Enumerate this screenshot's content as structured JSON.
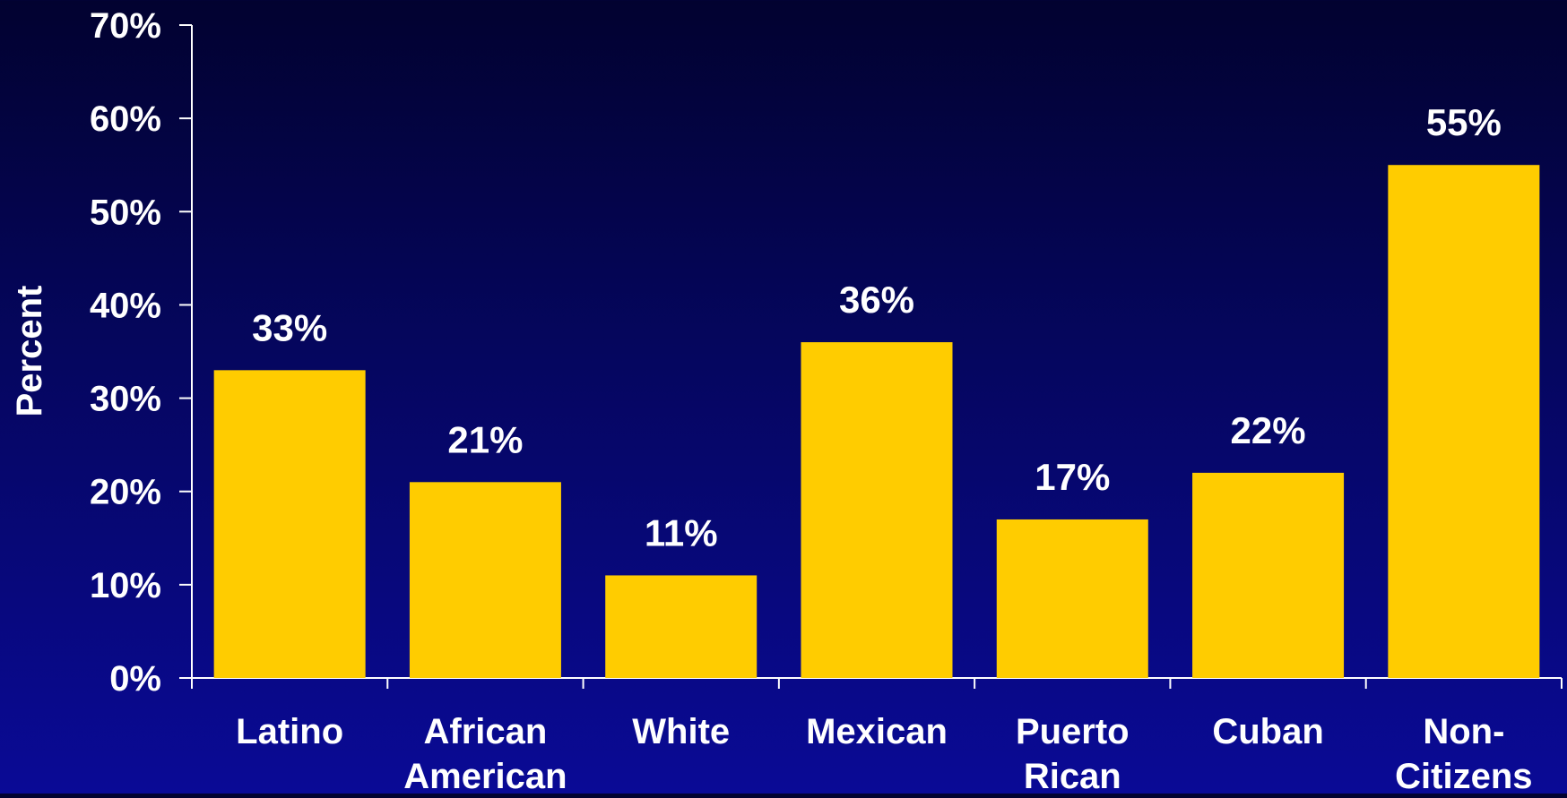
{
  "chart_data": {
    "type": "bar",
    "title": "",
    "xlabel": "",
    "ylabel": "Percent",
    "ylim": [
      0,
      70
    ],
    "yticks": [
      0,
      10,
      20,
      30,
      40,
      50,
      60,
      70
    ],
    "ytick_labels": [
      "0%",
      "10%",
      "20%",
      "30%",
      "40%",
      "50%",
      "60%",
      "70%"
    ],
    "categories": [
      [
        "Latino"
      ],
      [
        "African",
        "American"
      ],
      [
        "White"
      ],
      [
        "Mexican"
      ],
      [
        "Puerto",
        "Rican"
      ],
      [
        "Cuban"
      ],
      [
        "Non-",
        "Citizens"
      ]
    ],
    "values": [
      33,
      21,
      11,
      36,
      17,
      22,
      55
    ],
    "data_labels": [
      "33%",
      "21%",
      "11%",
      "36%",
      "17%",
      "22%",
      "55%"
    ],
    "grid": false,
    "legend": "none"
  },
  "colors": {
    "bar": "#FFCC00",
    "axis": "#FFFFFF",
    "text": "#FFFFFF"
  }
}
